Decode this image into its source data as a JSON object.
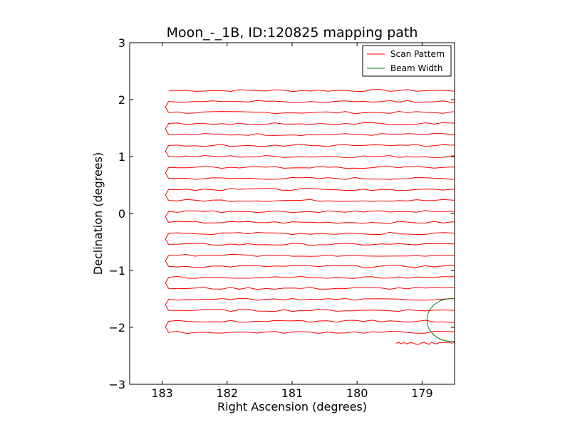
{
  "chart_data": {
    "type": "line",
    "title": "Moon_-_1B, ID:120825 mapping path",
    "xlabel": "Right Ascension (degrees)",
    "ylabel": "Declination (degrees)",
    "xlim": [
      183.5,
      178.5
    ],
    "ylim": [
      -3,
      3
    ],
    "x_inverted": true,
    "xticks": [
      183,
      182,
      181,
      180,
      179
    ],
    "xtick_labels": [
      "183",
      "182",
      "181",
      "180",
      "179"
    ],
    "yticks": [
      -3,
      -2,
      -1,
      0,
      1,
      2,
      3
    ],
    "ytick_labels": [
      "−3",
      "−2",
      "−1",
      "0",
      "1",
      "2",
      "3"
    ],
    "grid": false,
    "legend": "top-right",
    "series": [
      {
        "name": "Scan Pattern",
        "color": "#ff0000",
        "kind": "raster-scan",
        "x_left": 182.9,
        "x_right": 178.0,
        "dec_start": 2.16,
        "dec_end": -2.28,
        "rows": 24,
        "end_ra_last_row": 179.4
      },
      {
        "name": "Beam Width",
        "color": "#008000",
        "kind": "circle",
        "center_ra": 178.55,
        "center_dec": -1.87,
        "diameter_deg": 0.75
      }
    ]
  }
}
